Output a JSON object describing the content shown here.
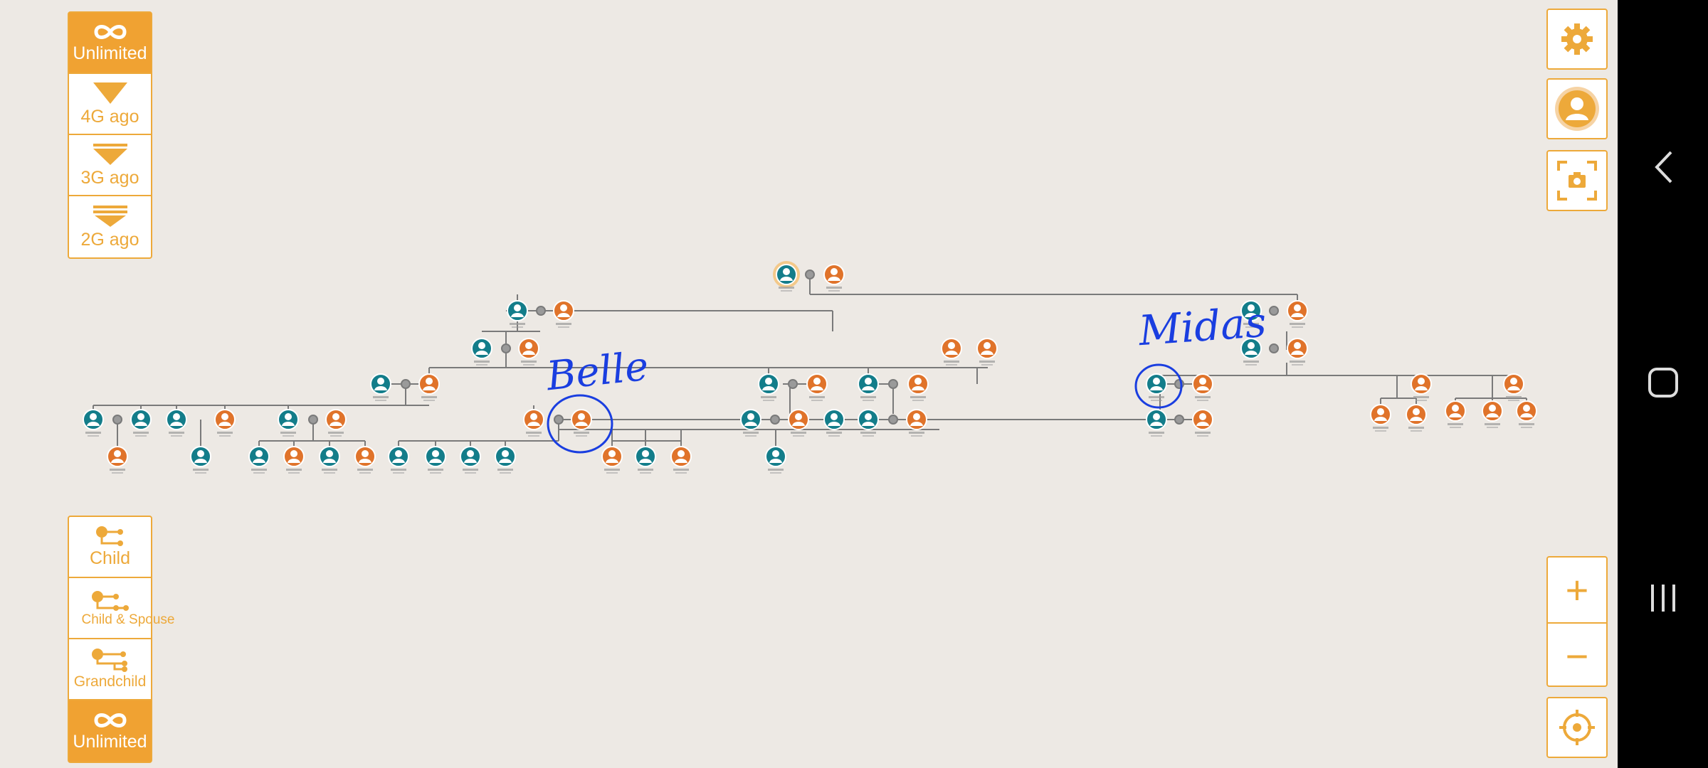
{
  "generation_filter": {
    "items": [
      {
        "label": "Unlimited",
        "icon": "infinity-icon",
        "active": true
      },
      {
        "label": "4G ago",
        "icon": "triangle-down-icon",
        "active": false
      },
      {
        "label": "3G ago",
        "icon": "triangle-down-double-icon",
        "active": false
      },
      {
        "label": "2G ago",
        "icon": "triangle-down-triple-icon",
        "active": false
      }
    ]
  },
  "descendant_filter": {
    "items": [
      {
        "label": "Child",
        "icon": "child-icon",
        "active": false
      },
      {
        "label": "Child & Spouse",
        "icon": "child-spouse-icon",
        "active": false
      },
      {
        "label": "Grandchild",
        "icon": "grandchild-icon",
        "active": false
      },
      {
        "label": "Unlimited",
        "icon": "infinity-icon",
        "active": true
      }
    ]
  },
  "toolbar": {
    "settings": "gear-icon",
    "profile": "avatar-icon",
    "screenshot": "camera-icon",
    "zoom_in": "+",
    "zoom_out": "−",
    "center": "crosshair-icon"
  },
  "annotations": {
    "bella": "Belle",
    "midas": "Midas"
  },
  "colors": {
    "accent": "#f0a232",
    "male": "#137d8a",
    "female": "#e0732a",
    "background": "#ede9e4",
    "ink": "#1a3ee0"
  }
}
